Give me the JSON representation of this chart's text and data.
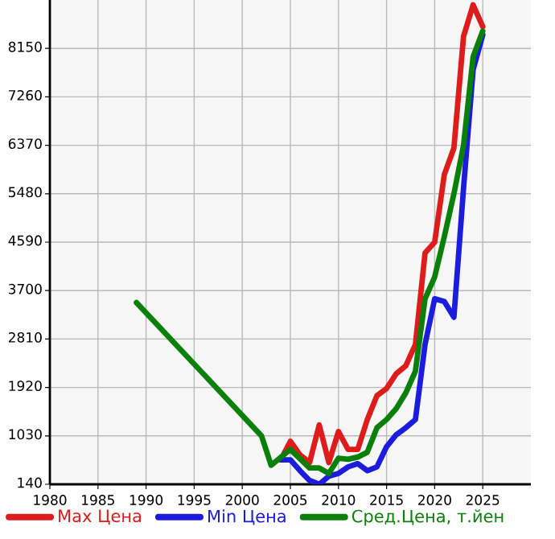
{
  "chart_data": {
    "type": "line",
    "xlim": [
      1980,
      2030
    ],
    "xticks": [
      1980,
      1985,
      1990,
      1995,
      2000,
      2005,
      2010,
      2015,
      2020,
      2025
    ],
    "ylim": [
      140,
      9040
    ],
    "yticks": [
      140,
      1030,
      1920,
      2810,
      3700,
      4590,
      5480,
      6370,
      7260,
      8150
    ],
    "grid": true,
    "legend": "bottom",
    "marker": "none",
    "line_style": "solid",
    "series": [
      {
        "name": "Max Цена",
        "color": "#dd1c1c",
        "x": [
          2004,
          2005,
          2006,
          2007,
          2008,
          2009,
          2010,
          2011,
          2012,
          2013,
          2014,
          2015,
          2016,
          2017,
          2018,
          2019,
          2020,
          2021,
          2022,
          2023,
          2024,
          2025
        ],
        "values": [
          590,
          930,
          680,
          540,
          1230,
          540,
          1110,
          780,
          780,
          1330,
          1770,
          1900,
          2170,
          2320,
          2710,
          4390,
          4590,
          5830,
          6320,
          8370,
          8950,
          8550
        ]
      },
      {
        "name": "Min Цена",
        "color": "#1c1cdd",
        "x": [
          2004,
          2005,
          2006,
          2007,
          2008,
          2009,
          2010,
          2011,
          2012,
          2013,
          2014,
          2015,
          2016,
          2017,
          2018,
          2019,
          2020,
          2021,
          2022,
          2023,
          2024,
          2025
        ],
        "values": [
          590,
          590,
          390,
          210,
          140,
          290,
          340,
          460,
          520,
          390,
          460,
          830,
          1050,
          1180,
          1330,
          2710,
          3550,
          3500,
          3210,
          5580,
          7760,
          8400
        ]
      },
      {
        "name": "Сред.Цена, т.йен",
        "color": "#0a7f0a",
        "x": [
          1989,
          2002,
          2003,
          2005,
          2007,
          2008,
          2009,
          2010,
          2011,
          2012,
          2013,
          2014,
          2015,
          2016,
          2017,
          2018,
          2019,
          2020,
          2021,
          2022,
          2023,
          2024,
          2025
        ],
        "values": [
          3480,
          1030,
          490,
          780,
          440,
          440,
          340,
          620,
          600,
          640,
          730,
          1180,
          1330,
          1530,
          1820,
          2220,
          3550,
          3950,
          4690,
          5480,
          6370,
          8000,
          8470
        ]
      }
    ]
  }
}
